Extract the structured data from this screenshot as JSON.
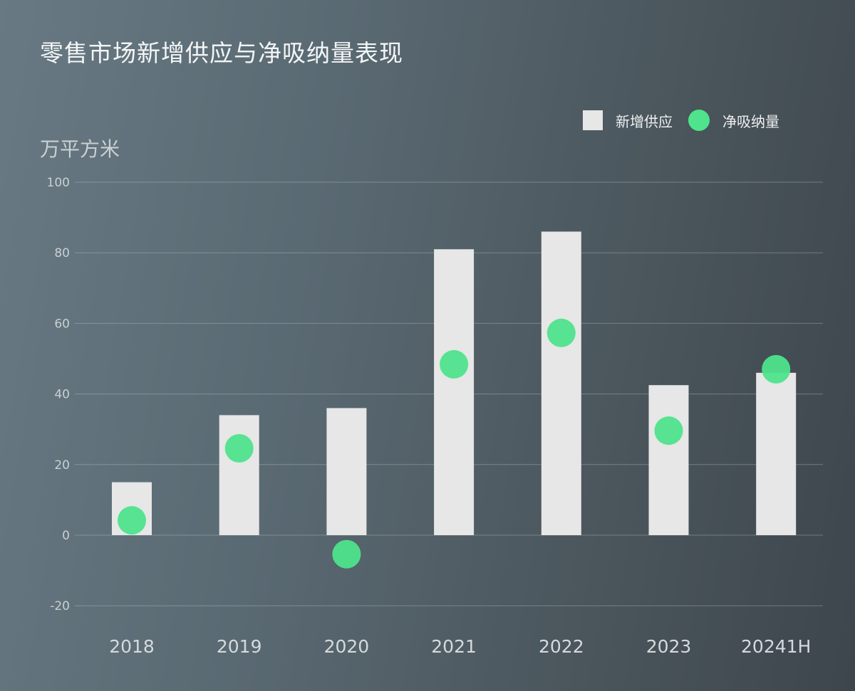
{
  "chart_data": {
    "type": "bar",
    "title": "零售市场新增供应与净吸纳量表现",
    "ylabel": "万平方米",
    "xlabel": "",
    "ylim": [
      -20,
      100
    ],
    "yticks": [
      100,
      80,
      60,
      40,
      20,
      0,
      -20
    ],
    "grid": true,
    "legend_position": "top-right",
    "categories": [
      "2018",
      "2019",
      "2020",
      "2021",
      "2022",
      "2023",
      "20241H"
    ],
    "series": [
      {
        "name": "新增供应",
        "type": "bar",
        "color": "#e6e7e6",
        "values": [
          15,
          34,
          36,
          81,
          86,
          42.5,
          46
        ]
      },
      {
        "name": "净吸纳量",
        "type": "scatter",
        "color": "#4fe38c",
        "values": [
          4.2,
          24.6,
          -5.4,
          48.4,
          57.3,
          29.6,
          47
        ]
      }
    ]
  }
}
